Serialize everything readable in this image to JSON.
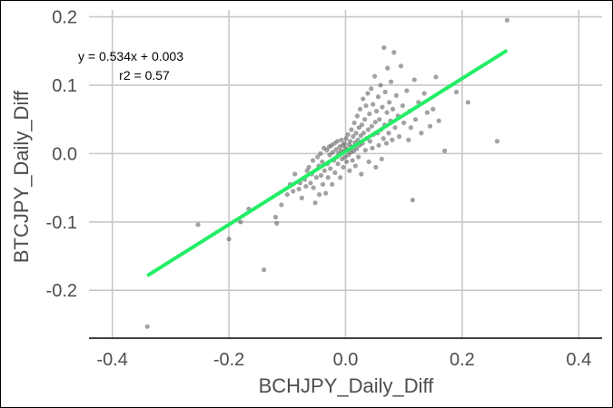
{
  "chart_data": {
    "type": "scatter",
    "title": "",
    "xlabel": "BCHJPY_Daily_Diff",
    "ylabel": "BTCJPY_Daily_Diff",
    "xlim": [
      -0.44,
      0.44
    ],
    "ylim": [
      -0.27,
      0.21
    ],
    "x_ticks": [
      -0.4,
      -0.2,
      0.0,
      0.2,
      0.4
    ],
    "x_tick_labels": [
      "-0.4",
      "-0.2",
      "0.0",
      "0.2",
      "0.4"
    ],
    "y_ticks": [
      -0.2,
      -0.1,
      0.0,
      0.1,
      0.2
    ],
    "y_tick_labels": [
      "-0.2",
      "-0.1",
      "0.0",
      "0.1",
      "0.2"
    ],
    "grid": true,
    "annotation": {
      "equation": "y = 0.534x + 0.003",
      "r2": "r2 = 0.57"
    },
    "regression": {
      "slope": 0.534,
      "intercept": 0.003,
      "x_range": [
        -0.34,
        0.277
      ],
      "color": "#22ee66"
    },
    "point_color": "#555555",
    "series": [
      {
        "points": [
          [
            -0.34,
            -0.253
          ],
          [
            -0.253,
            -0.104
          ],
          [
            -0.2,
            -0.125
          ],
          [
            -0.18,
            -0.1
          ],
          [
            -0.166,
            -0.081
          ],
          [
            -0.14,
            -0.17
          ],
          [
            -0.12,
            -0.093
          ],
          [
            -0.118,
            -0.102
          ],
          [
            -0.11,
            -0.075
          ],
          [
            -0.1,
            -0.06
          ],
          [
            -0.095,
            -0.045
          ],
          [
            -0.09,
            -0.055
          ],
          [
            -0.087,
            -0.03
          ],
          [
            -0.08,
            -0.052
          ],
          [
            -0.078,
            -0.043
          ],
          [
            -0.075,
            -0.065
          ],
          [
            -0.07,
            -0.038
          ],
          [
            -0.068,
            -0.048
          ],
          [
            -0.066,
            -0.025
          ],
          [
            -0.063,
            -0.02
          ],
          [
            -0.06,
            -0.043
          ],
          [
            -0.058,
            -0.03
          ],
          [
            -0.056,
            -0.01
          ],
          [
            -0.055,
            -0.05
          ],
          [
            -0.052,
            -0.072
          ],
          [
            -0.05,
            -0.035
          ],
          [
            -0.048,
            -0.005
          ],
          [
            -0.046,
            -0.018
          ],
          [
            -0.045,
            -0.06
          ],
          [
            -0.043,
            0.0
          ],
          [
            -0.042,
            -0.032
          ],
          [
            -0.04,
            -0.012
          ],
          [
            -0.039,
            -0.045
          ],
          [
            -0.037,
            0.008
          ],
          [
            -0.036,
            -0.025
          ],
          [
            -0.034,
            -0.058
          ],
          [
            -0.032,
            0.005
          ],
          [
            -0.031,
            -0.015
          ],
          [
            -0.03,
            -0.035
          ],
          [
            -0.028,
            0.01
          ],
          [
            -0.027,
            -0.002
          ],
          [
            -0.026,
            -0.022
          ],
          [
            -0.024,
            0.012
          ],
          [
            -0.023,
            -0.045
          ],
          [
            -0.022,
            0.002
          ],
          [
            -0.02,
            -0.01
          ],
          [
            -0.019,
            0.015
          ],
          [
            -0.018,
            -0.028
          ],
          [
            -0.016,
            0.006
          ],
          [
            -0.015,
            -0.005
          ],
          [
            -0.014,
            0.018
          ],
          [
            -0.013,
            -0.015
          ],
          [
            -0.012,
            0.0
          ],
          [
            -0.01,
            0.01
          ],
          [
            -0.009,
            -0.035
          ],
          [
            -0.008,
            0.004
          ],
          [
            -0.007,
            0.02
          ],
          [
            -0.006,
            -0.008
          ],
          [
            -0.005,
            0.012
          ],
          [
            -0.004,
            -0.02
          ],
          [
            -0.003,
            0.003
          ],
          [
            -0.002,
            0.015
          ],
          [
            -0.001,
            -0.005
          ],
          [
            0.0,
            0.008
          ],
          [
            0.001,
            0.022
          ],
          [
            0.002,
            -0.012
          ],
          [
            0.003,
            0.005
          ],
          [
            0.004,
            0.028
          ],
          [
            0.005,
            -0.002
          ],
          [
            0.006,
            0.013
          ],
          [
            0.007,
            -0.025
          ],
          [
            0.008,
            0.018
          ],
          [
            0.009,
            0.002
          ],
          [
            0.01,
            0.035
          ],
          [
            0.011,
            0.01
          ],
          [
            0.012,
            -0.01
          ],
          [
            0.013,
            0.025
          ],
          [
            0.014,
            0.004
          ],
          [
            0.015,
            0.045
          ],
          [
            0.016,
            0.016
          ],
          [
            0.017,
            -0.018
          ],
          [
            0.018,
            0.03
          ],
          [
            0.019,
            0.007
          ],
          [
            0.02,
            0.055
          ],
          [
            0.021,
            0.02
          ],
          [
            0.022,
            -0.005
          ],
          [
            0.023,
            0.038
          ],
          [
            0.024,
            0.012
          ],
          [
            0.025,
            0.065
          ],
          [
            0.026,
            0.026
          ],
          [
            0.027,
            -0.03
          ],
          [
            0.028,
            0.042
          ],
          [
            0.029,
            0.015
          ],
          [
            0.03,
            0.08
          ],
          [
            0.031,
            0.03
          ],
          [
            0.033,
            0.05
          ],
          [
            0.034,
            0.005
          ],
          [
            0.035,
            0.07
          ],
          [
            0.036,
            0.022
          ],
          [
            0.038,
            0.088
          ],
          [
            0.039,
            0.035
          ],
          [
            0.04,
            -0.012
          ],
          [
            0.041,
            0.058
          ],
          [
            0.042,
            0.018
          ],
          [
            0.044,
            0.095
          ],
          [
            0.045,
            0.04
          ],
          [
            0.046,
            0.008
          ],
          [
            0.047,
            0.072
          ],
          [
            0.048,
            0.028
          ],
          [
            0.05,
            0.113
          ],
          [
            0.051,
            0.046
          ],
          [
            0.052,
            -0.02
          ],
          [
            0.053,
            0.062
          ],
          [
            0.055,
            0.03
          ],
          [
            0.056,
            0.083
          ],
          [
            0.057,
            0.012
          ],
          [
            0.058,
            0.05
          ],
          [
            0.06,
            0.1
          ],
          [
            0.061,
            0.035
          ],
          [
            0.062,
            -0.008
          ],
          [
            0.063,
            0.068
          ],
          [
            0.065,
            0.022
          ],
          [
            0.066,
            0.155
          ],
          [
            0.067,
            0.042
          ],
          [
            0.068,
            0.09
          ],
          [
            0.07,
            0.015
          ],
          [
            0.071,
            0.06
          ],
          [
            0.072,
            0.125
          ],
          [
            0.074,
            0.03
          ],
          [
            0.075,
            0.075
          ],
          [
            0.077,
            0.048
          ],
          [
            0.078,
            0.105
          ],
          [
            0.08,
            0.02
          ],
          [
            0.081,
            0.065
          ],
          [
            0.083,
            0.148
          ],
          [
            0.085,
            0.038
          ],
          [
            0.087,
            0.085
          ],
          [
            0.09,
            0.055
          ],
          [
            0.092,
            0.025
          ],
          [
            0.095,
            0.128
          ],
          [
            0.098,
            0.07
          ],
          [
            0.1,
            0.045
          ],
          [
            0.105,
            0.092
          ],
          [
            0.108,
            0.02
          ],
          [
            0.11,
            0.062
          ],
          [
            0.112,
            0.038
          ],
          [
            0.115,
            -0.068
          ],
          [
            0.118,
            0.108
          ],
          [
            0.12,
            0.05
          ],
          [
            0.125,
            0.075
          ],
          [
            0.13,
            0.03
          ],
          [
            0.135,
            0.088
          ],
          [
            0.14,
            0.06
          ],
          [
            0.145,
            0.04
          ],
          [
            0.15,
            0.065
          ],
          [
            0.155,
            0.112
          ],
          [
            0.16,
            0.048
          ],
          [
            0.17,
            0.004
          ],
          [
            0.19,
            0.09
          ],
          [
            0.21,
            0.075
          ],
          [
            0.26,
            0.018
          ],
          [
            0.277,
            0.195
          ]
        ]
      }
    ]
  }
}
